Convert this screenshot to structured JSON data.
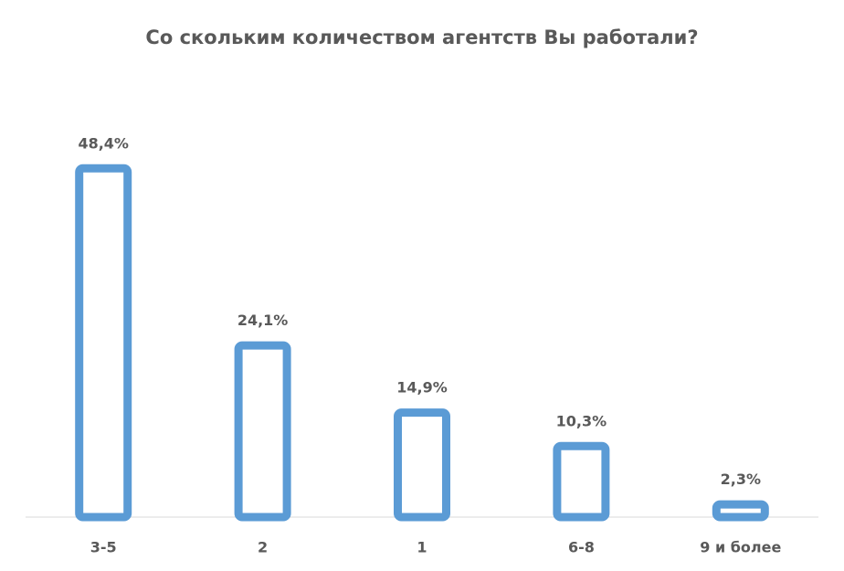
{
  "chart_data": {
    "type": "bar",
    "title": "Со скольким количеством агентств Вы работали?",
    "categories": [
      "3-5",
      "2",
      "1",
      "6-8",
      "9 и более"
    ],
    "values": [
      48.4,
      24.1,
      14.9,
      10.3,
      2.3
    ],
    "value_labels": [
      "48,4%",
      "24,1%",
      "14,9%",
      "10,3%",
      "2,3%"
    ],
    "color": "#5b9bd5"
  }
}
